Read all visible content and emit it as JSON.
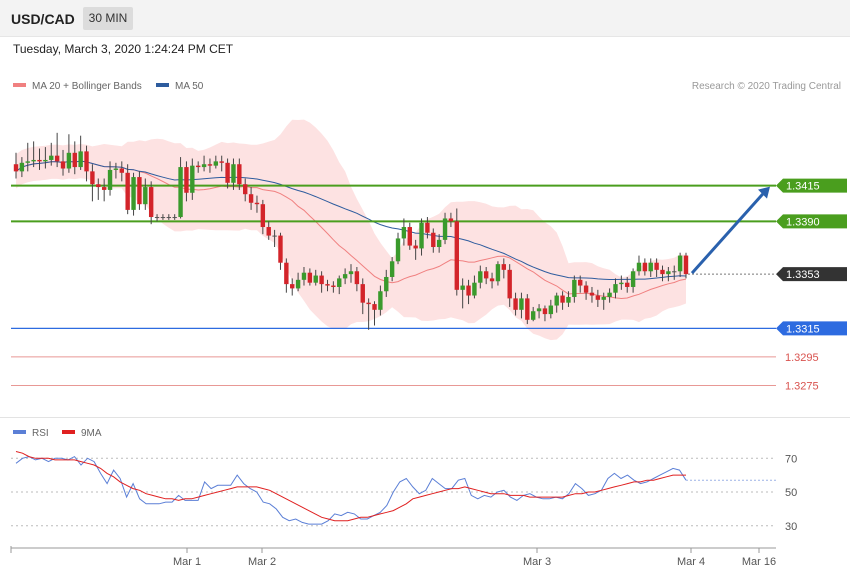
{
  "header": {
    "symbol": "USD/CAD",
    "interval": "30 MIN"
  },
  "datetime": "Tuesday, March 3, 2020 1:24:24 PM CET",
  "legend": {
    "ma20": {
      "label": "MA 20 + Bollinger Bands",
      "color": "#f08080"
    },
    "ma50": {
      "label": "MA 50",
      "color": "#2e5c9e"
    }
  },
  "copyright": "Research © 2020 Trading Central",
  "rsi_legend": {
    "rsi": {
      "label": "RSI",
      "color": "#5b7fd6"
    },
    "ma9": {
      "label": "9MA",
      "color": "#e02020"
    }
  },
  "chart_data": {
    "type": "candlestick",
    "ylim": [
      1.3255,
      1.3475
    ],
    "levels": [
      {
        "value": 1.3415,
        "label": "1.3415",
        "kind": "resistance",
        "color": "#4a9e1e"
      },
      {
        "value": 1.339,
        "label": "1.3390",
        "kind": "resistance",
        "color": "#4a9e1e"
      },
      {
        "value": 1.3353,
        "label": "1.3353",
        "kind": "last-price",
        "color": "#333333"
      },
      {
        "value": 1.3315,
        "label": "1.3315",
        "kind": "pivot",
        "color": "#2d6be0"
      },
      {
        "value": 1.3295,
        "label": "1.3295",
        "kind": "support",
        "color": "#d9534f"
      },
      {
        "value": 1.3275,
        "label": "1.3275",
        "kind": "support",
        "color": "#d9534f"
      }
    ],
    "x_ticks": [
      "Mar 1",
      "Mar 2",
      "Mar 3",
      "Mar 4",
      "Mar 16"
    ],
    "arrow": {
      "from": 1.3353,
      "to": 1.3415,
      "direction": "up"
    },
    "candles": [
      [
        1.343,
        1.3425,
        1.3438,
        1.342
      ],
      [
        1.3425,
        1.3431,
        1.3435,
        1.3421
      ],
      [
        1.3431,
        1.3432,
        1.3445,
        1.3425
      ],
      [
        1.3432,
        1.3433,
        1.3446,
        1.3428
      ],
      [
        1.3433,
        1.3432,
        1.3441,
        1.3426
      ],
      [
        1.3432,
        1.3433,
        1.3442,
        1.3427
      ],
      [
        1.3433,
        1.3436,
        1.3445,
        1.3429
      ],
      [
        1.3436,
        1.3432,
        1.3452,
        1.3428
      ],
      [
        1.3432,
        1.3427,
        1.344,
        1.3422
      ],
      [
        1.3427,
        1.3438,
        1.3451,
        1.3424
      ],
      [
        1.3438,
        1.3428,
        1.3446,
        1.3423
      ],
      [
        1.3428,
        1.3439,
        1.345,
        1.3426
      ],
      [
        1.3439,
        1.3425,
        1.3443,
        1.3418
      ],
      [
        1.3425,
        1.3416,
        1.343,
        1.3404
      ],
      [
        1.3416,
        1.3414,
        1.342,
        1.3405
      ],
      [
        1.3414,
        1.3412,
        1.342,
        1.3404
      ],
      [
        1.3412,
        1.3426,
        1.3432,
        1.3408
      ],
      [
        1.3426,
        1.3427,
        1.3431,
        1.342
      ],
      [
        1.3427,
        1.3424,
        1.3432,
        1.3418
      ],
      [
        1.3424,
        1.3398,
        1.343,
        1.3395
      ],
      [
        1.3398,
        1.3421,
        1.3424,
        1.3394
      ],
      [
        1.3421,
        1.3402,
        1.3425,
        1.3398
      ],
      [
        1.3402,
        1.3414,
        1.342,
        1.3398
      ],
      [
        1.3414,
        1.3393,
        1.3418,
        1.3388
      ],
      [
        1.3393,
        1.3393,
        1.3395,
        1.339
      ],
      [
        1.3393,
        1.3393,
        1.3395,
        1.3391
      ],
      [
        1.3393,
        1.3393,
        1.3395,
        1.3391
      ],
      [
        1.3393,
        1.3393,
        1.3395,
        1.3391
      ],
      [
        1.3393,
        1.3428,
        1.3435,
        1.3392
      ],
      [
        1.3428,
        1.341,
        1.3432,
        1.3404
      ],
      [
        1.341,
        1.3429,
        1.3434,
        1.3405
      ],
      [
        1.3429,
        1.3428,
        1.3432,
        1.3424
      ],
      [
        1.3428,
        1.343,
        1.3436,
        1.3425
      ],
      [
        1.343,
        1.3429,
        1.3434,
        1.3424
      ],
      [
        1.3429,
        1.3432,
        1.3436,
        1.3427
      ],
      [
        1.3432,
        1.3431,
        1.3436,
        1.3425
      ],
      [
        1.3431,
        1.3417,
        1.3434,
        1.3413
      ],
      [
        1.3417,
        1.343,
        1.3434,
        1.3412
      ],
      [
        1.343,
        1.3416,
        1.3434,
        1.3412
      ],
      [
        1.3416,
        1.3409,
        1.342,
        1.3404
      ],
      [
        1.3409,
        1.3403,
        1.3414,
        1.3398
      ],
      [
        1.3403,
        1.3402,
        1.3408,
        1.3396
      ],
      [
        1.3402,
        1.3386,
        1.3405,
        1.3381
      ],
      [
        1.3386,
        1.338,
        1.339,
        1.3377
      ],
      [
        1.338,
        1.338,
        1.3384,
        1.3372
      ],
      [
        1.338,
        1.3361,
        1.3382,
        1.3356
      ],
      [
        1.3361,
        1.3346,
        1.3364,
        1.334
      ],
      [
        1.3346,
        1.3343,
        1.335,
        1.3338
      ],
      [
        1.3343,
        1.3349,
        1.3354,
        1.3341
      ],
      [
        1.3349,
        1.3354,
        1.3358,
        1.3345
      ],
      [
        1.3354,
        1.3347,
        1.3357,
        1.3345
      ],
      [
        1.3347,
        1.3352,
        1.3356,
        1.3345
      ],
      [
        1.3352,
        1.3346,
        1.3355,
        1.334
      ],
      [
        1.3346,
        1.3345,
        1.3349,
        1.3341
      ],
      [
        1.3345,
        1.3344,
        1.3348,
        1.334
      ],
      [
        1.3344,
        1.335,
        1.3352,
        1.3339
      ],
      [
        1.335,
        1.3353,
        1.3357,
        1.3346
      ],
      [
        1.3353,
        1.3355,
        1.336,
        1.3347
      ],
      [
        1.3355,
        1.3346,
        1.3358,
        1.3341
      ],
      [
        1.3346,
        1.3333,
        1.335,
        1.3325
      ],
      [
        1.3333,
        1.3332,
        1.3336,
        1.3314
      ],
      [
        1.3332,
        1.3328,
        1.3334,
        1.3317
      ],
      [
        1.3328,
        1.3341,
        1.3345,
        1.3324
      ],
      [
        1.3341,
        1.3351,
        1.3356,
        1.3337
      ],
      [
        1.3351,
        1.3362,
        1.3365,
        1.3348
      ],
      [
        1.3362,
        1.3378,
        1.3382,
        1.336
      ],
      [
        1.3378,
        1.3386,
        1.3392,
        1.3373
      ],
      [
        1.3386,
        1.3373,
        1.3389,
        1.337
      ],
      [
        1.3373,
        1.3371,
        1.3377,
        1.3363
      ],
      [
        1.3371,
        1.3389,
        1.3392,
        1.3366
      ],
      [
        1.3389,
        1.3382,
        1.3393,
        1.3378
      ],
      [
        1.3382,
        1.3372,
        1.3385,
        1.3368
      ],
      [
        1.3372,
        1.3377,
        1.3381,
        1.3368
      ],
      [
        1.3377,
        1.3392,
        1.3396,
        1.3374
      ],
      [
        1.3392,
        1.339,
        1.3396,
        1.3386
      ],
      [
        1.339,
        1.3342,
        1.3399,
        1.3338
      ],
      [
        1.3342,
        1.3345,
        1.335,
        1.3329
      ],
      [
        1.3345,
        1.3338,
        1.3349,
        1.3332
      ],
      [
        1.3338,
        1.3347,
        1.3352,
        1.3336
      ],
      [
        1.3347,
        1.3355,
        1.3359,
        1.3343
      ],
      [
        1.3355,
        1.335,
        1.3358,
        1.3346
      ],
      [
        1.335,
        1.3348,
        1.3354,
        1.3343
      ],
      [
        1.3348,
        1.336,
        1.3362,
        1.3345
      ],
      [
        1.336,
        1.3356,
        1.3364,
        1.335
      ],
      [
        1.3356,
        1.3336,
        1.336,
        1.333
      ],
      [
        1.3336,
        1.3328,
        1.334,
        1.3324
      ],
      [
        1.3328,
        1.3336,
        1.334,
        1.3322
      ],
      [
        1.3336,
        1.3321,
        1.3339,
        1.3318
      ],
      [
        1.3321,
        1.3327,
        1.333,
        1.332
      ],
      [
        1.3327,
        1.3329,
        1.3332,
        1.3322
      ],
      [
        1.3329,
        1.3325,
        1.3331,
        1.332
      ],
      [
        1.3325,
        1.3331,
        1.3335,
        1.3322
      ],
      [
        1.3331,
        1.3338,
        1.334,
        1.3326
      ],
      [
        1.3338,
        1.3333,
        1.3341,
        1.3328
      ],
      [
        1.3333,
        1.3337,
        1.3341,
        1.333
      ],
      [
        1.3337,
        1.3349,
        1.3352,
        1.3333
      ],
      [
        1.3349,
        1.3345,
        1.3352,
        1.334
      ],
      [
        1.3345,
        1.334,
        1.3348,
        1.3335
      ],
      [
        1.334,
        1.3338,
        1.3344,
        1.3333
      ],
      [
        1.3338,
        1.3335,
        1.3342,
        1.333
      ],
      [
        1.3335,
        1.3337,
        1.334,
        1.3328
      ],
      [
        1.3337,
        1.334,
        1.3343,
        1.3333
      ],
      [
        1.334,
        1.3346,
        1.335,
        1.3336
      ],
      [
        1.3346,
        1.3347,
        1.3352,
        1.3342
      ],
      [
        1.3347,
        1.3344,
        1.3351,
        1.334
      ],
      [
        1.3344,
        1.3355,
        1.3357,
        1.334
      ],
      [
        1.3355,
        1.3361,
        1.3366,
        1.3352
      ],
      [
        1.3361,
        1.3355,
        1.3364,
        1.3352
      ],
      [
        1.3355,
        1.3361,
        1.3364,
        1.3351
      ],
      [
        1.3361,
        1.3356,
        1.3364,
        1.3351
      ],
      [
        1.3356,
        1.3353,
        1.3359,
        1.3348
      ],
      [
        1.3353,
        1.3355,
        1.3358,
        1.3348
      ],
      [
        1.3355,
        1.3355,
        1.3359,
        1.3349
      ],
      [
        1.3355,
        1.3366,
        1.3368,
        1.3351
      ],
      [
        1.3366,
        1.3353,
        1.3368,
        1.335
      ]
    ],
    "rsi": {
      "gridlines": [
        70,
        50,
        30
      ],
      "ylim": [
        18,
        82
      ],
      "series": [
        {
          "name": "RSI",
          "values": [
            67,
            70,
            71,
            69,
            70,
            68,
            70,
            70,
            69,
            71,
            66,
            70,
            68,
            61,
            55,
            63,
            58,
            47,
            55,
            46,
            43,
            43,
            43,
            44,
            44,
            48,
            45,
            45,
            45,
            56,
            52,
            54,
            54,
            54,
            60,
            55,
            52,
            50,
            44,
            43,
            40,
            35,
            33,
            34,
            32,
            31,
            31,
            31,
            33,
            37,
            36,
            38,
            37,
            34,
            34,
            36,
            38,
            42,
            50,
            56,
            58,
            53,
            49,
            51,
            58,
            55,
            52,
            52,
            57,
            58,
            48,
            46,
            48,
            47,
            50,
            51,
            47,
            45,
            48,
            49,
            47,
            46,
            46,
            47,
            46,
            49,
            55,
            52,
            48,
            49,
            51,
            58,
            61,
            58,
            60,
            57,
            55,
            56,
            58,
            60,
            62,
            64,
            63,
            57
          ]
        },
        {
          "name": "9MA",
          "values": [
            74,
            73,
            71,
            70,
            70,
            70,
            69,
            69,
            69,
            69,
            68,
            67,
            66,
            64,
            61,
            59,
            56,
            54,
            52,
            51,
            49,
            48,
            47,
            46,
            46,
            45,
            46,
            46,
            47,
            48,
            49,
            50,
            51,
            52,
            53,
            53,
            53,
            53,
            52,
            51,
            49,
            47,
            45,
            43,
            41,
            39,
            37,
            35,
            34,
            33,
            33,
            33,
            34,
            35,
            35,
            36,
            37,
            38,
            39,
            41,
            43,
            46,
            47,
            48,
            49,
            50,
            51,
            52,
            52,
            53,
            52,
            51,
            50,
            49,
            49,
            49,
            48,
            48,
            48,
            47,
            47,
            47,
            47,
            47,
            47,
            48,
            49,
            49,
            50,
            50,
            51,
            52,
            53,
            54,
            55,
            56,
            56,
            57,
            57,
            58,
            59,
            60,
            60,
            60
          ]
        }
      ]
    }
  }
}
